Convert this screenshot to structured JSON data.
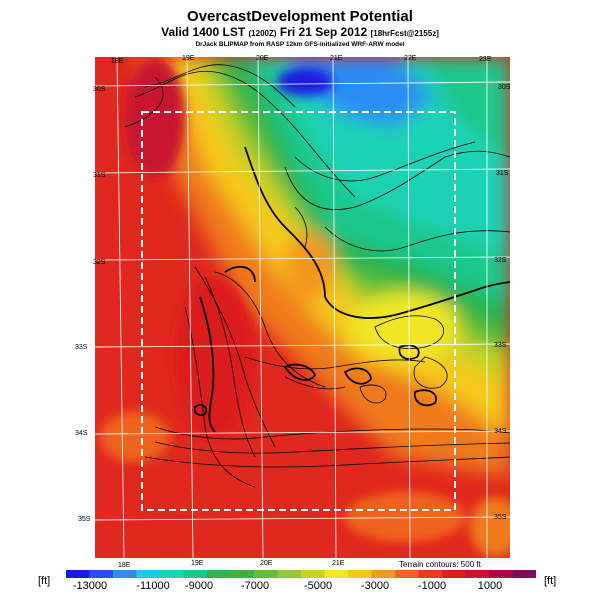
{
  "title": "OvercastDevelopment Potential",
  "subtitle_main": "Valid 1400 LST",
  "subtitle_small1": "(1200Z)",
  "subtitle_date": "Fri 21 Sep 2012",
  "subtitle_small2": "[18hrFcst@2155z]",
  "credit": "DrJack BLIPMAP from RASP 12km GFS-initialized WRF-ARW model",
  "terrain_note": "Terrain contours: 500 ft",
  "unit_label": "[ft]",
  "lon_labels_top": [
    "18E",
    "19E",
    "20E",
    "21E",
    "22E",
    "23E"
  ],
  "lon_labels_bottom": [
    "18E",
    "19E",
    "20E",
    "21E"
  ],
  "lat_labels_left": [
    "30S",
    "31S",
    "32S",
    "33S",
    "34S",
    "35S"
  ],
  "lat_labels_right": [
    "30S",
    "31S",
    "32S",
    "33S",
    "34S",
    "35S"
  ],
  "colorbar": {
    "tick_labels": [
      "-13000",
      "-11000",
      "-9000",
      "-7000",
      "-5000",
      "-3000",
      "-1000",
      "1000"
    ],
    "colors": [
      "#1a1ae0",
      "#2a4ef0",
      "#2a8cf5",
      "#1ec8f0",
      "#1ed2b4",
      "#1ec88c",
      "#28b450",
      "#3cb43c",
      "#64be32",
      "#96c832",
      "#c8d228",
      "#f0e628",
      "#f5c81e",
      "#f5961e",
      "#f0641e",
      "#e63c1e",
      "#dc1e1e",
      "#c81432",
      "#aa0a4b",
      "#820a5a"
    ]
  }
}
